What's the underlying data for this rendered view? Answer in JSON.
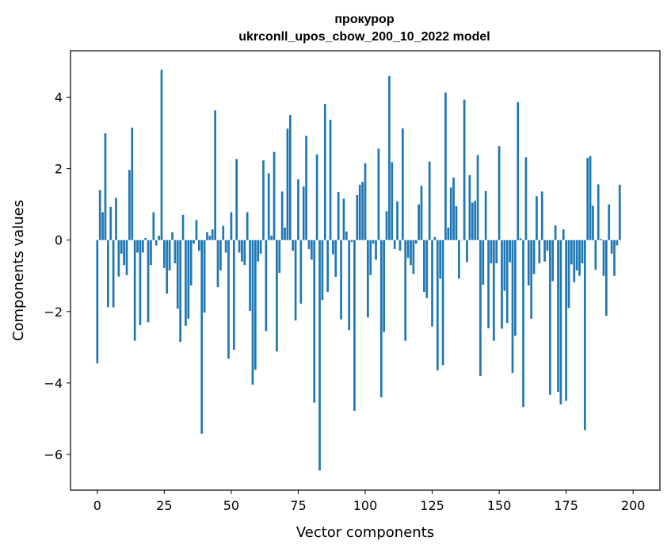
{
  "chart_data": {
    "type": "bar",
    "title_line1": "прокурор",
    "title_line2": "ukrconll_upos_cbow_200_10_2022 model",
    "xlabel": "Vector components",
    "ylabel": "Components values",
    "xlim": [
      -10,
      210
    ],
    "ylim": [
      -7.0,
      5.3
    ],
    "xticks": [
      0,
      25,
      50,
      75,
      100,
      125,
      150,
      175,
      200
    ],
    "yticks": [
      -6,
      -4,
      -2,
      0,
      2,
      4
    ],
    "ytick_labels": [
      "−6",
      "−4",
      "−2",
      "0",
      "2",
      "4"
    ],
    "bar_color": "#1f77b4",
    "grid": false,
    "values": [
      -3.45,
      1.4,
      0.78,
      2.99,
      -1.88,
      0.93,
      -1.88,
      1.18,
      -1.02,
      -0.38,
      -0.7,
      -0.98,
      1.96,
      3.15,
      -2.82,
      -0.35,
      -2.38,
      -0.35,
      0.06,
      -2.3,
      -0.7,
      0.78,
      -0.15,
      0.12,
      4.77,
      -0.78,
      -1.5,
      -0.85,
      0.22,
      -0.65,
      -1.92,
      -2.85,
      0.71,
      -2.4,
      -2.2,
      -1.27,
      -0.1,
      0.56,
      -0.3,
      -5.42,
      -2.03,
      0.22,
      0.12,
      0.3,
      3.63,
      -1.32,
      -0.85,
      0.4,
      -0.35,
      -3.32,
      0.78,
      -3.07,
      2.27,
      -0.35,
      -0.6,
      -0.7,
      0.78,
      -1.98,
      -4.05,
      -3.63,
      -0.6,
      -0.38,
      2.23,
      -2.55,
      1.87,
      0.12,
      2.47,
      -3.12,
      -0.92,
      1.36,
      0.35,
      3.12,
      3.5,
      -0.3,
      -2.25,
      1.7,
      -1.78,
      1.5,
      2.92,
      -0.25,
      -0.55,
      -4.55,
      2.4,
      -6.45,
      -1.68,
      3.81,
      -1.45,
      3.37,
      -0.4,
      -1.03,
      1.35,
      -2.22,
      1.16,
      0.24,
      -2.52,
      -0.05,
      -4.78,
      1.26,
      1.55,
      1.63,
      2.15,
      -2.17,
      -0.98,
      -0.1,
      -0.55,
      2.56,
      -4.4,
      -2.57,
      0.81,
      4.59,
      2.18,
      -0.25,
      1.08,
      -0.3,
      3.13,
      -2.82,
      -0.5,
      -0.7,
      -0.95,
      -0.1,
      1.0,
      1.52,
      -1.45,
      -1.62,
      2.2,
      -2.42,
      0.08,
      -3.65,
      -1.08,
      -3.5,
      4.13,
      0.35,
      1.47,
      1.75,
      0.95,
      -1.08,
      0.0,
      3.93,
      -0.62,
      1.82,
      1.05,
      1.1,
      2.38,
      -3.8,
      -1.25,
      1.37,
      -2.47,
      -0.65,
      -2.82,
      -0.65,
      2.63,
      -2.48,
      -1.42,
      -2.32,
      -0.62,
      -3.72,
      -2.68,
      3.86,
      0.05,
      -4.67,
      2.32,
      -1.27,
      -2.2,
      -0.95,
      1.23,
      -0.65,
      1.36,
      -0.6,
      -0.3,
      -4.33,
      -1.15,
      0.41,
      -4.25,
      -4.6,
      0.3,
      -4.5,
      -1.9,
      -0.68,
      -1.18,
      -0.85,
      -1.0,
      -0.65,
      -5.32,
      2.3,
      2.35,
      0.96,
      -0.83,
      1.56,
      0.03,
      -1.0,
      -2.12,
      1.0,
      -0.38,
      -1.0,
      -0.15,
      1.55
    ]
  }
}
